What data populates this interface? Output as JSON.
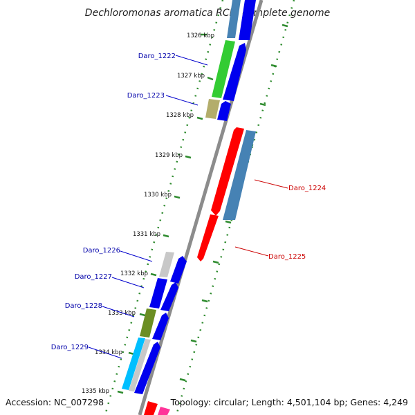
{
  "title": "Dechloromonas aromatica RCB, complete genome",
  "footer": {
    "accession": "Accession: NC_007298",
    "topology": "Topology: circular; Length: 4,501,104 bp; Genes: 4,249"
  },
  "ticks": [
    {
      "label": "1326 kbp"
    },
    {
      "label": "1327 kbp"
    },
    {
      "label": "1328 kbp"
    },
    {
      "label": "1329 kbp"
    },
    {
      "label": "1330 kbp"
    },
    {
      "label": "1331 kbp"
    },
    {
      "label": "1332 kbp"
    },
    {
      "label": "1333 kbp"
    },
    {
      "label": "1334 kbp"
    },
    {
      "label": "1335 kbp"
    }
  ],
  "genes": [
    {
      "label": "Daro_1222",
      "strand": "forward",
      "color": "#0000ee",
      "cog_color": "#33cc33"
    },
    {
      "label": "Daro_1223",
      "strand": "forward",
      "color": "#0000ee",
      "cog_color": "#b3ad6b"
    },
    {
      "label": "Daro_1224",
      "strand": "reverse",
      "color": "#ff0000",
      "cog_color": "#4682b4"
    },
    {
      "label": "Daro_1225",
      "strand": "reverse",
      "color": "#ff0000",
      "cog_color": ""
    },
    {
      "label": "Daro_1226",
      "strand": "forward",
      "color": "#0000ee",
      "cog_color": "#c8c8c8"
    },
    {
      "label": "Daro_1227",
      "strand": "forward",
      "color": "#0000ee",
      "cog_color": "#0000ee"
    },
    {
      "label": "Daro_1228",
      "strand": "forward",
      "color": "#0000ee",
      "cog_color": "#6b8e23"
    },
    {
      "label": "Daro_1229",
      "strand": "forward",
      "color": "#0000ee",
      "cog_color": "#00bfff"
    }
  ]
}
